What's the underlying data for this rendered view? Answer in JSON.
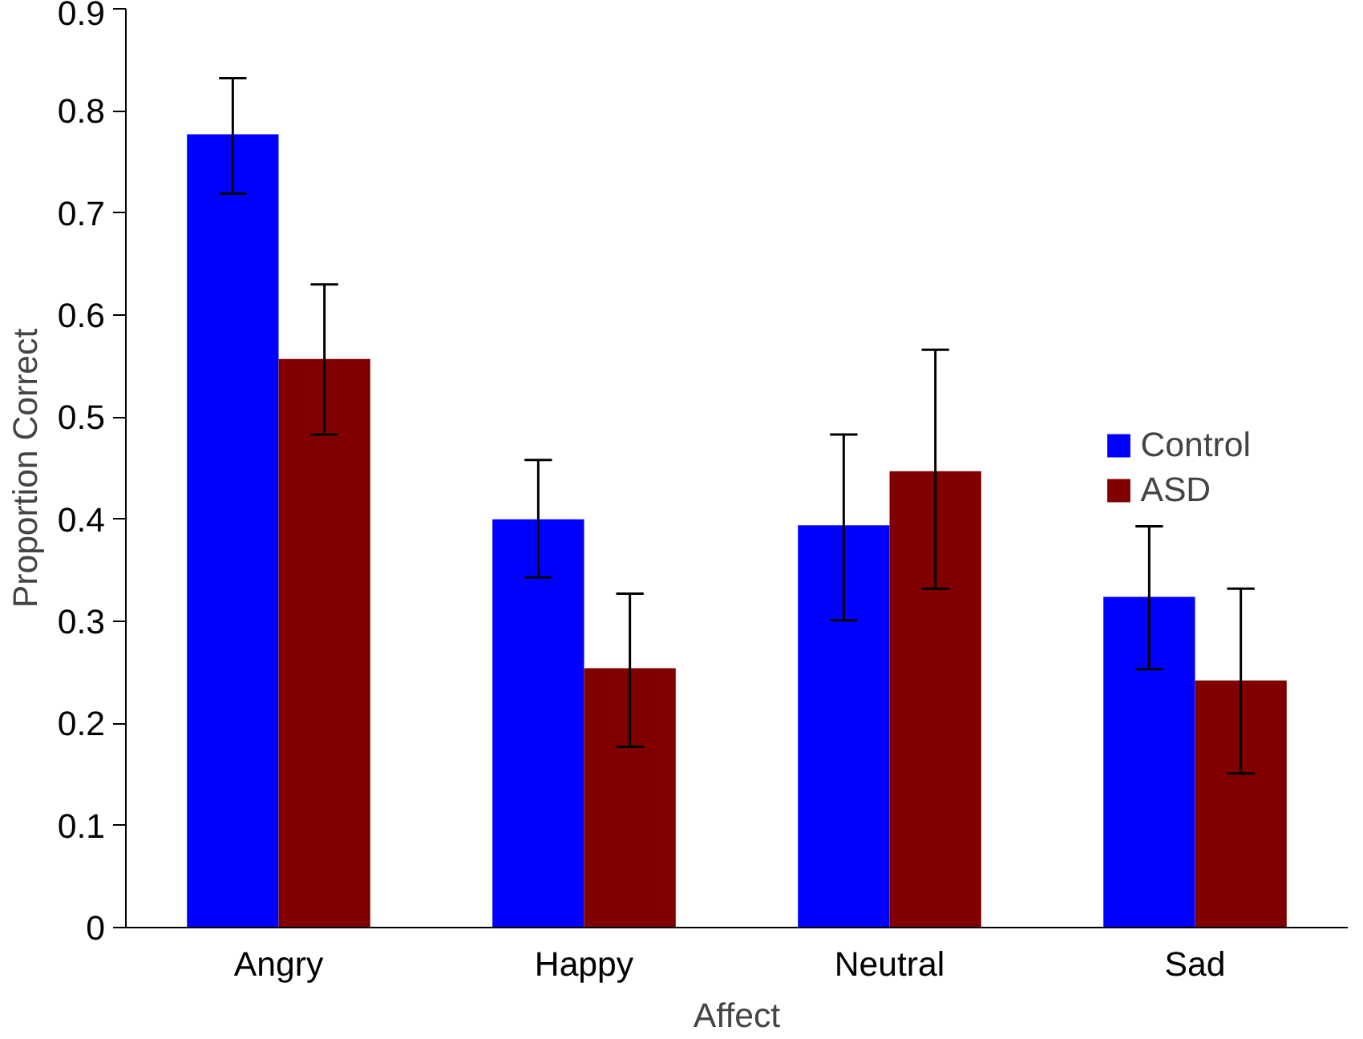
{
  "chart_data": {
    "type": "bar",
    "xlabel": "Affect",
    "ylabel": "Proportion Correct",
    "categories": [
      "Angry",
      "Happy",
      "Neutral",
      "Sad"
    ],
    "series": [
      {
        "name": "Control",
        "color": "#0000ff",
        "values": [
          0.777,
          0.4,
          0.394,
          0.324
        ],
        "errors": [
          [
            0.719,
            0.832
          ],
          [
            0.343,
            0.458
          ],
          [
            0.301,
            0.483
          ],
          [
            0.253,
            0.393
          ]
        ]
      },
      {
        "name": "ASD",
        "color": "#800000",
        "values": [
          0.557,
          0.254,
          0.447,
          0.242
        ],
        "errors": [
          [
            0.483,
            0.63
          ],
          [
            0.177,
            0.327
          ],
          [
            0.332,
            0.566
          ],
          [
            0.151,
            0.332
          ]
        ]
      }
    ],
    "ylim": [
      0,
      0.9
    ],
    "yticks": [
      0,
      0.1,
      0.2,
      0.3,
      0.4,
      0.5,
      0.6,
      0.7,
      0.8,
      0.9
    ],
    "grid": false,
    "legend": "right"
  }
}
